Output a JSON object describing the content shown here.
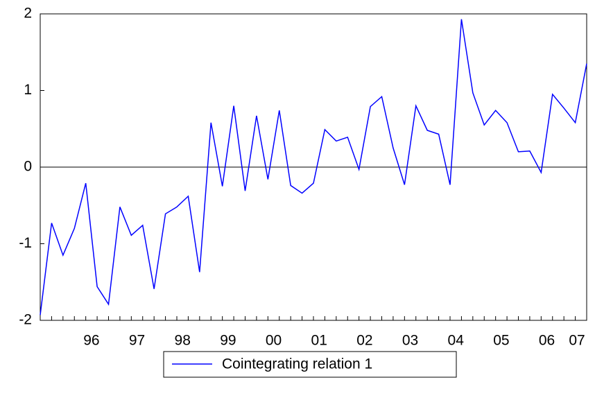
{
  "chart_data": {
    "type": "line",
    "categories": [
      null,
      null,
      null,
      null,
      "96",
      null,
      null,
      null,
      "97",
      null,
      null,
      null,
      "98",
      null,
      null,
      null,
      "99",
      null,
      null,
      null,
      "00",
      null,
      null,
      null,
      "01",
      null,
      null,
      null,
      "02",
      null,
      null,
      null,
      "03",
      null,
      null,
      null,
      "04",
      null,
      null,
      null,
      "05",
      null,
      null,
      null,
      "06",
      null,
      null,
      "07",
      null
    ],
    "series": [
      {
        "name": "Cointegrating relation 1",
        "color": "#0000ff",
        "values": [
          -1.93,
          -0.73,
          -1.15,
          -0.8,
          -0.21,
          -1.56,
          -1.79,
          -0.52,
          -0.89,
          -0.76,
          -1.59,
          -0.61,
          -0.52,
          -0.38,
          -1.37,
          0.58,
          -0.25,
          0.8,
          -0.31,
          0.67,
          -0.16,
          0.74,
          -0.24,
          -0.34,
          -0.21,
          0.49,
          0.34,
          0.39,
          -0.03,
          0.79,
          0.92,
          0.25,
          -0.23,
          0.8,
          0.48,
          0.43,
          -0.23,
          1.93,
          0.97,
          0.55,
          0.74,
          0.58,
          0.2,
          0.21,
          -0.07,
          0.95,
          0.77,
          0.58,
          1.35
        ]
      }
    ],
    "ylim": [
      -2,
      2
    ],
    "yticks": [
      -2,
      -1,
      0,
      1,
      2
    ]
  }
}
